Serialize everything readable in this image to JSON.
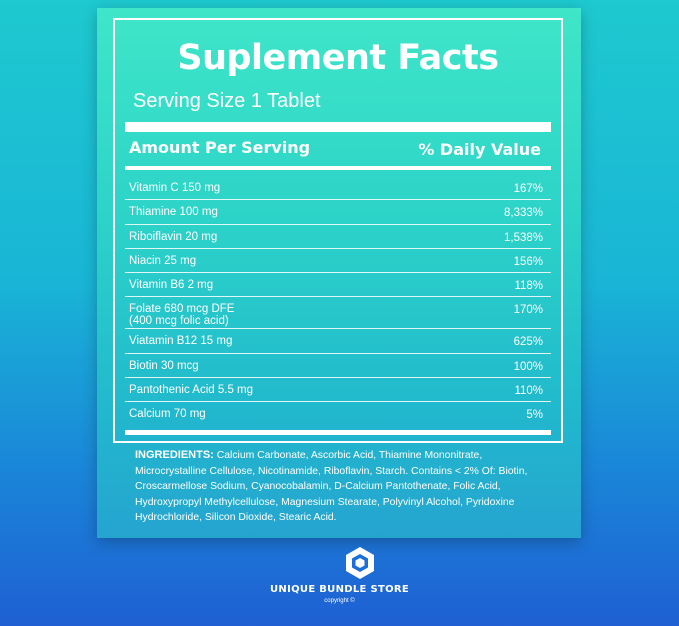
{
  "label": {
    "title": "Suplement Facts",
    "serving_size": "Serving Size 1 Tablet",
    "header_amount": "Amount Per Serving",
    "header_daily": "% Daily Value",
    "rows": [
      {
        "name": "Vitamin  C  150  mg",
        "dv": "167%"
      },
      {
        "name": "Thiamine  100 mg",
        "dv": "8,333%"
      },
      {
        "name": "Riboiflavin  20 mg",
        "dv": "1,538%"
      },
      {
        "name": "Niacin 25  mg",
        "dv": "156%"
      },
      {
        "name": "Vitamin B6  2  mg",
        "dv": "118%"
      },
      {
        "name": "Folate 680 mcg  DFE\n(400 mcg folic acid)",
        "dv": "170%"
      },
      {
        "name": "Viatamin B12  15  mg",
        "dv": "625%"
      },
      {
        "name": "Biotin  30 mcg",
        "dv": "100%"
      },
      {
        "name": "Pantothenic Acid 5.5   mg",
        "dv": "110%"
      },
      {
        "name": "Calcium 70 mg",
        "dv": "5%"
      }
    ],
    "ingredients_label": "INGREDIENTS:",
    "ingredients_text": " Calcium Carbonate, Ascorbic Acid, Thiamine Mononitrate, Microcrystalline Cellulose, Nicotinamide, Riboflavin, Starch. Contains < 2% Of: Biotin, Croscarmellose Sodium, Cyanocobalamin, D-Calcium Pantothenate, Folic Acid, Hydroxypropyl Methylcellulose, Magnesium Stearate, Polyvinyl Alcohol, Pyridoxine Hydrochloride, Silicon Dioxide, Stearic Acid."
  },
  "brand": {
    "name": "UNIQUE BUNDLE STORE",
    "copyright": "copyright ©",
    "logo_icon": "hexagon-logo-icon"
  }
}
